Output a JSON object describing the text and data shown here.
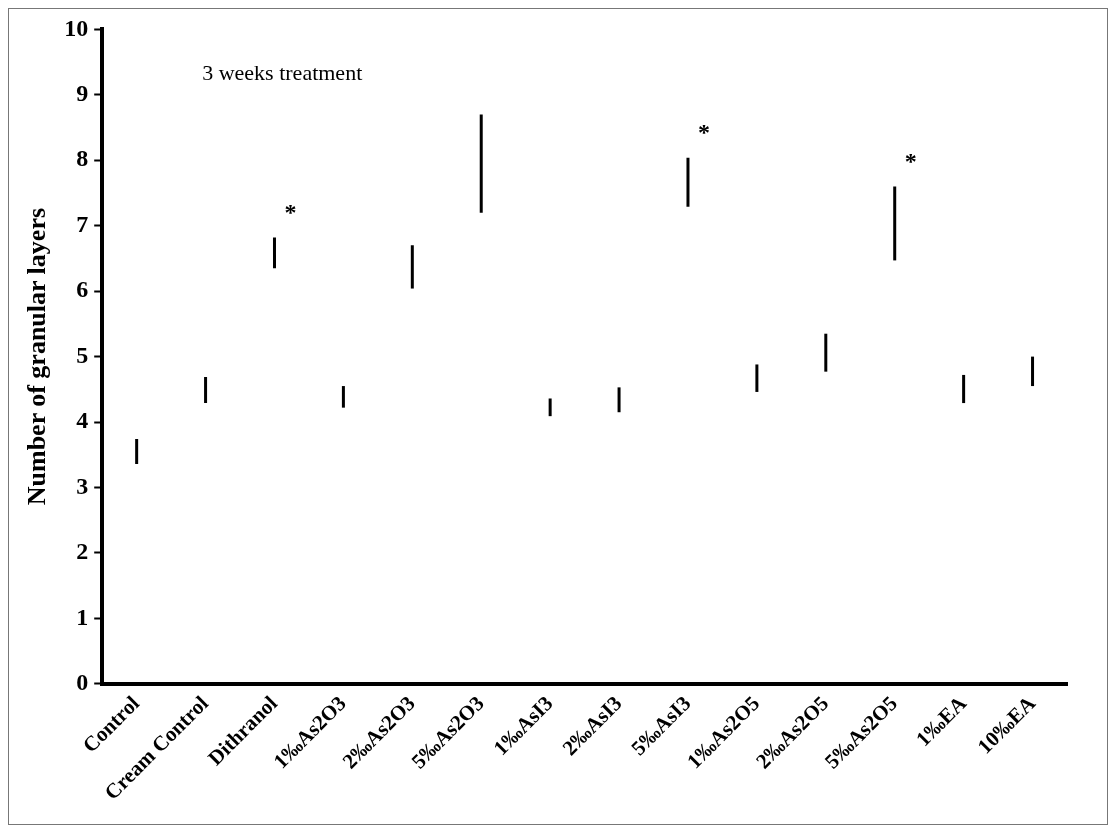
{
  "chart_data": {
    "type": "bar",
    "ylabel": "Number of granular layers",
    "categories": [
      "Control",
      "Cream Control",
      "Dithranol",
      "1‰As2O3",
      "2‰As2O3",
      "5‰As2O3",
      "1‰AsI3",
      "2‰AsI3",
      "5‰AsI3",
      "1‰As2O5",
      "2‰As2O5",
      "5‰As2O5",
      "1‰EA",
      "10‰EA"
    ],
    "base": [
      3.36,
      4.29,
      6.35,
      4.22,
      6.04,
      7.2,
      4.09,
      4.15,
      7.29,
      4.46,
      4.77,
      6.47,
      4.29,
      4.55
    ],
    "values": [
      0.38,
      0.4,
      0.47,
      0.33,
      0.66,
      1.5,
      0.27,
      0.38,
      0.75,
      0.42,
      0.58,
      1.13,
      0.43,
      0.45
    ],
    "color": "#000000",
    "ylim": [
      0,
      10
    ],
    "yticks": [
      0,
      1,
      2,
      3,
      4,
      5,
      6,
      7,
      8,
      9,
      10
    ],
    "grid": false,
    "legend": false,
    "annotations": [
      "3 weeks treatment",
      {
        "text": "*",
        "x": "Dithranol",
        "y": 6.82
      },
      {
        "text": "*",
        "x": "5‰AsI3",
        "y": 8.04
      },
      {
        "text": "*",
        "x": "5‰As2O5",
        "y": 7.6
      }
    ]
  }
}
